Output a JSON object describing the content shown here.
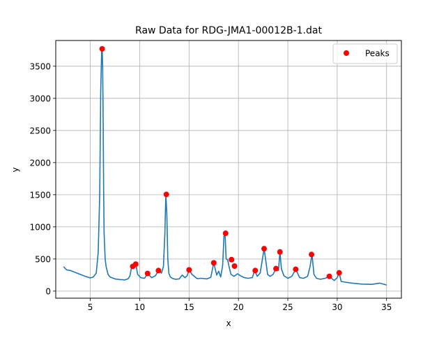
{
  "chart_data": {
    "type": "line",
    "title": "Raw Data for RDG-JMA1-00012B-1.dat",
    "xlabel": "x",
    "ylabel": "y",
    "xlim": [
      1.5,
      36.5
    ],
    "ylim": [
      -110,
      3900
    ],
    "xticks": [
      5,
      10,
      15,
      20,
      25,
      30,
      35
    ],
    "yticks": [
      0,
      500,
      1000,
      1500,
      2000,
      2500,
      3000,
      3500
    ],
    "grid": true,
    "legend_position": "top-right",
    "series": [
      {
        "name": "",
        "kind": "line",
        "color": "#1f77b4",
        "x": [
          2.3,
          2.6,
          3.0,
          3.5,
          4.0,
          4.5,
          5.0,
          5.3,
          5.6,
          5.8,
          5.95,
          6.05,
          6.15,
          6.2,
          6.25,
          6.3,
          6.35,
          6.4,
          6.5,
          6.6,
          6.8,
          7.0,
          7.5,
          8.0,
          8.5,
          8.8,
          9.0,
          9.2,
          9.35,
          9.6,
          9.8,
          10.1,
          10.5,
          10.8,
          11.2,
          11.6,
          11.9,
          12.2,
          12.4,
          12.55,
          12.65,
          12.75,
          12.85,
          12.95,
          13.1,
          13.3,
          13.6,
          14.0,
          14.3,
          14.6,
          14.8,
          15.0,
          15.3,
          15.8,
          16.3,
          16.8,
          17.2,
          17.5,
          17.8,
          18.0,
          18.2,
          18.4,
          18.55,
          18.65,
          18.75,
          18.9,
          19.05,
          19.25,
          19.55,
          19.9,
          20.2,
          20.6,
          21.0,
          21.4,
          21.65,
          21.9,
          22.2,
          22.45,
          22.6,
          22.75,
          22.95,
          23.2,
          23.5,
          23.8,
          24.05,
          24.2,
          24.35,
          24.6,
          25.0,
          25.4,
          25.8,
          26.2,
          26.6,
          27.0,
          27.25,
          27.45,
          27.65,
          27.9,
          28.3,
          28.8,
          29.2,
          29.7,
          30.0,
          30.2,
          30.4,
          30.8,
          31.5,
          32.5,
          33.5,
          34.3,
          35.0
        ],
        "y": [
          380,
          330,
          320,
          290,
          260,
          230,
          205,
          220,
          280,
          600,
          1500,
          3100,
          3750,
          3770,
          3500,
          2700,
          1600,
          900,
          500,
          380,
          260,
          220,
          190,
          180,
          175,
          190,
          230,
          390,
          360,
          420,
          260,
          210,
          200,
          275,
          210,
          240,
          320,
          280,
          380,
          900,
          1505,
          1200,
          500,
          280,
          220,
          200,
          185,
          190,
          250,
          210,
          240,
          330,
          260,
          195,
          200,
          190,
          215,
          440,
          250,
          310,
          220,
          400,
          900,
          880,
          500,
          490,
          380,
          260,
          230,
          270,
          240,
          210,
          200,
          210,
          320,
          230,
          280,
          520,
          660,
          500,
          260,
          230,
          260,
          350,
          320,
          610,
          350,
          240,
          200,
          230,
          340,
          210,
          200,
          230,
          380,
          570,
          260,
          200,
          185,
          200,
          230,
          165,
          210,
          285,
          150,
          140,
          125,
          110,
          105,
          125,
          95
        ]
      },
      {
        "name": "Peaks",
        "kind": "markers",
        "color": "#ff0000",
        "x": [
          6.2,
          9.3,
          9.6,
          10.8,
          11.9,
          12.7,
          15.0,
          17.5,
          18.7,
          19.3,
          19.6,
          21.7,
          22.6,
          23.8,
          24.2,
          25.8,
          27.4,
          29.2,
          30.2
        ],
        "y": [
          3770,
          385,
          420,
          275,
          320,
          1505,
          330,
          440,
          900,
          490,
          390,
          320,
          660,
          350,
          610,
          340,
          570,
          230,
          285
        ]
      }
    ]
  }
}
